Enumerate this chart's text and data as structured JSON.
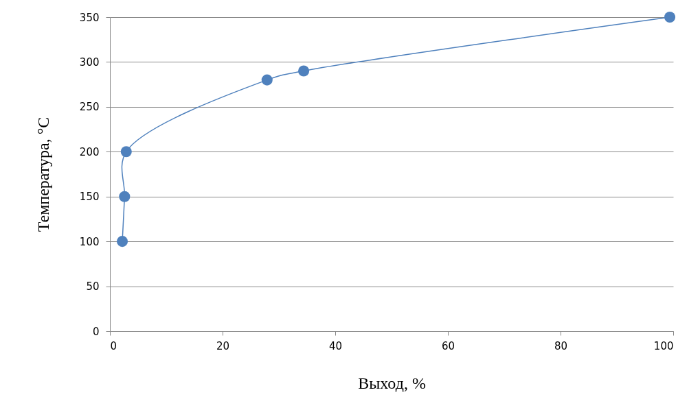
{
  "chart_data": {
    "type": "line",
    "xlabel": "Выход, %",
    "ylabel": "Температура, °C",
    "x": [
      2.2,
      2.6,
      2.9,
      27.9,
      34.4,
      99.4
    ],
    "values": [
      100,
      150,
      200,
      280,
      290,
      350
    ],
    "color": "#4f81bd",
    "marker": "circle",
    "xlim": [
      0,
      100
    ],
    "xticks": [
      0,
      20,
      40,
      60,
      80,
      100
    ],
    "ylim": [
      0,
      350
    ],
    "yticks": [
      0,
      50,
      100,
      150,
      200,
      250,
      300,
      350
    ],
    "grid": "y"
  }
}
